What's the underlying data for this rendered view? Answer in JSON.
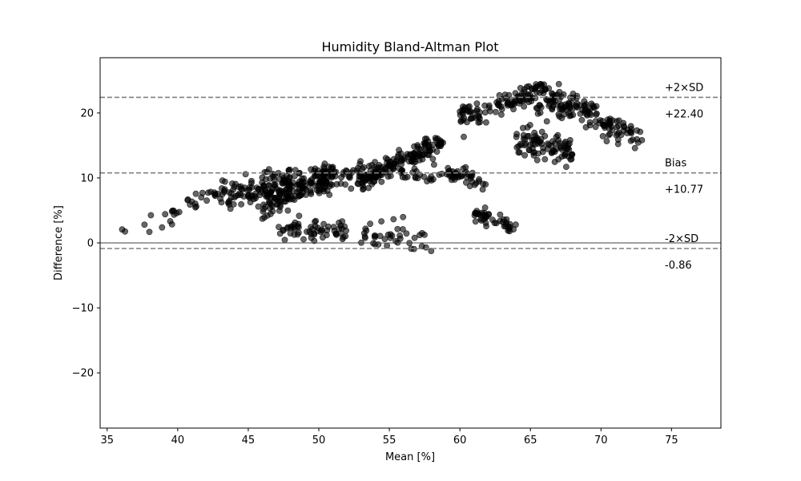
{
  "chart_data": {
    "type": "scatter",
    "title": "Humidity Bland-Altman Plot",
    "xlabel": "Mean [%]",
    "ylabel": "Difference [%]",
    "xlim": [
      34.5,
      78.5
    ],
    "ylim": [
      -28.5,
      28.5
    ],
    "xticks": [
      35,
      40,
      45,
      50,
      55,
      60,
      65,
      70,
      75
    ],
    "yticks": [
      -20,
      -10,
      0,
      10,
      20
    ],
    "xtick_labels": [
      "35",
      "40",
      "45",
      "50",
      "55",
      "60",
      "65",
      "70",
      "75"
    ],
    "ytick_labels": [
      "−20",
      "−10",
      "0",
      "10",
      "20"
    ],
    "grid": false,
    "point_color": "#000000",
    "point_opacity": 0.6,
    "reference_lines": [
      {
        "label": "+2×SD",
        "value": 22.4,
        "value_label": "+22.40",
        "style": "dashed",
        "color": "#808080"
      },
      {
        "label": "Bias",
        "value": 10.77,
        "value_label": "+10.77",
        "style": "dashed",
        "color": "#808080"
      },
      {
        "label": "-2×SD",
        "value": -0.86,
        "value_label": "-0.86",
        "style": "dashed",
        "color": "#808080"
      },
      {
        "label": "",
        "value": 0,
        "value_label": "",
        "style": "solid",
        "color": "#404040"
      }
    ],
    "clusters": [
      {
        "x_range": [
          36,
          39
        ],
        "slope": 0,
        "intercept": 2.5,
        "spread": 3.0,
        "n": 6
      },
      {
        "x_range": [
          39,
          44
        ],
        "slope": 0.9,
        "intercept": -31,
        "spread": 2.5,
        "n": 30
      },
      {
        "x_range": [
          43,
          48
        ],
        "slope": 0.6,
        "intercept": -19,
        "spread": 3.0,
        "n": 110
      },
      {
        "x_range": [
          46,
          51
        ],
        "slope": 1.1,
        "intercept": -45,
        "spread": 3.2,
        "n": 150
      },
      {
        "x_range": [
          47,
          52
        ],
        "slope": 0.0,
        "intercept": 2,
        "spread": 2.5,
        "n": 60
      },
      {
        "x_range": [
          50,
          55
        ],
        "slope": 0.6,
        "intercept": -21,
        "spread": 3.0,
        "n": 70
      },
      {
        "x_range": [
          53,
          58
        ],
        "slope": 0.0,
        "intercept": 1,
        "spread": 3.5,
        "n": 40
      },
      {
        "x_range": [
          53,
          59
        ],
        "slope": 1.1,
        "intercept": -49,
        "spread": 2.2,
        "n": 140
      },
      {
        "x_range": [
          55,
          61
        ],
        "slope": 0.0,
        "intercept": 10.5,
        "spread": 2.2,
        "n": 40
      },
      {
        "x_range": [
          59,
          62
        ],
        "slope": -0.5,
        "intercept": 40,
        "spread": 1.5,
        "n": 25
      },
      {
        "x_range": [
          61,
          64
        ],
        "slope": -0.6,
        "intercept": 41,
        "spread": 1.5,
        "n": 45
      },
      {
        "x_range": [
          60,
          66
        ],
        "slope": 0.8,
        "intercept": -29,
        "spread": 2.8,
        "n": 110
      },
      {
        "x_range": [
          64,
          68
        ],
        "slope": -0.5,
        "intercept": 48,
        "spread": 3.0,
        "n": 90
      },
      {
        "x_range": [
          66,
          73
        ],
        "slope": -1.0,
        "intercept": 89,
        "spread": 2.8,
        "n": 120
      },
      {
        "x_range": [
          65,
          70
        ],
        "slope": 0.0,
        "intercept": 20.5,
        "spread": 2.5,
        "n": 35
      }
    ]
  }
}
